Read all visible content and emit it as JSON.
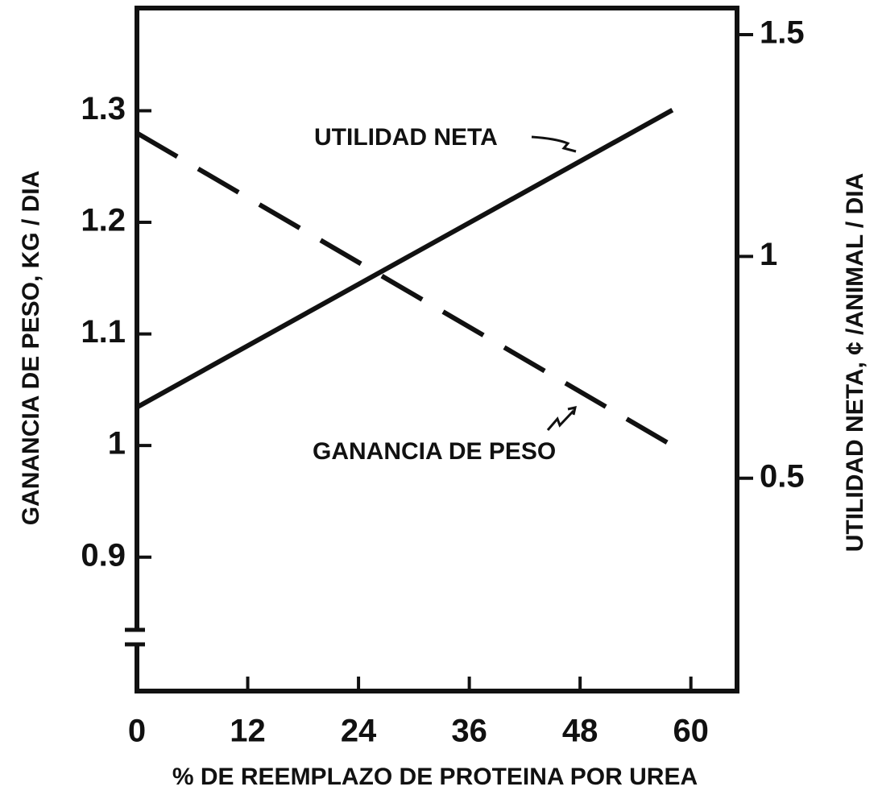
{
  "chart_data": {
    "type": "line",
    "x_label": "% DE REEMPLAZO DE PROTEINA POR UREA",
    "y_label": "GANANCIA DE PESO, KG / DIA",
    "y2_label": "UTILIDAD NETA, ¢ /ANIMAL / DIA",
    "xlim": [
      0,
      65
    ],
    "xticks": [
      0,
      12,
      24,
      36,
      48,
      60
    ],
    "ylim": [
      0.78,
      1.392
    ],
    "yticks": [
      0.9,
      1.0,
      1.1,
      1.2,
      1.3
    ],
    "y2lim": [
      0.02,
      1.56
    ],
    "y2ticks": [
      0.5,
      1.0,
      1.5
    ],
    "series": [
      {
        "name": "UTILIDAD NETA",
        "color": "#111111",
        "dashed": false,
        "axis": "y2",
        "x": [
          0,
          58
        ],
        "values": [
          0.66,
          1.33
        ]
      },
      {
        "name": "GANANCIA DE PESO",
        "color": "#111111",
        "dashed": true,
        "axis": "y",
        "x": [
          0,
          58
        ],
        "values": [
          1.28,
          1.0
        ]
      }
    ]
  }
}
